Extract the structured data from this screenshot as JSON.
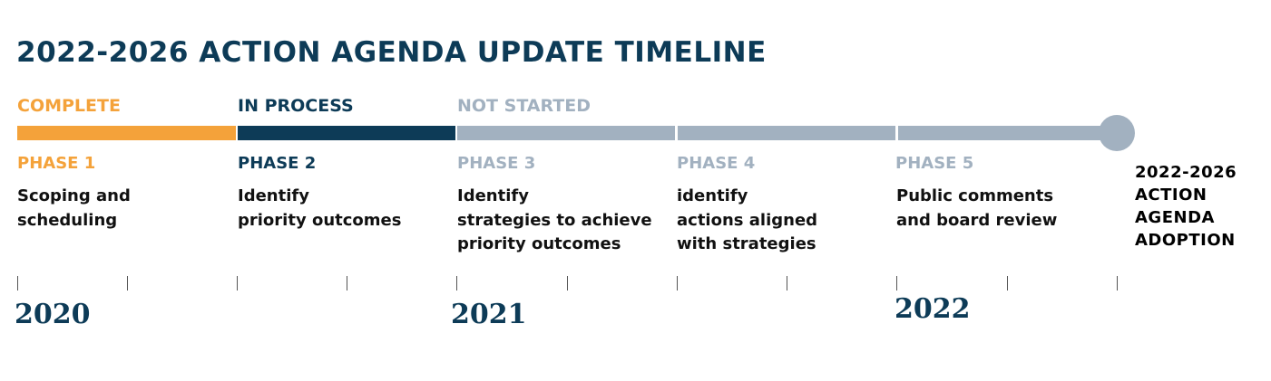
{
  "title": "2022-2026 ACTION AGENDA UPDATE TIMELINE",
  "colors": {
    "complete": "#f4a23a",
    "in_process": "#0d3b57",
    "not_started": "#a2b1c0",
    "text_dark": "#111111"
  },
  "statuses": [
    {
      "label": "COMPLETE",
      "color": "#f4a23a"
    },
    {
      "label": "IN PROCESS",
      "color": "#0d3b57"
    },
    {
      "label": "NOT STARTED",
      "color": "#a2b1c0"
    }
  ],
  "phases": [
    {
      "label": "PHASE 1",
      "status": "complete",
      "lines": [
        "Scoping and",
        "scheduling"
      ]
    },
    {
      "label": "PHASE 2",
      "status": "in_process",
      "lines": [
        "Identify",
        "priority outcomes"
      ]
    },
    {
      "label": "PHASE 3",
      "status": "not_started",
      "lines": [
        "Identify",
        "strategies to achieve",
        "priority outcomes"
      ]
    },
    {
      "label": "PHASE 4",
      "status": "not_started",
      "lines": [
        "identify",
        "actions aligned",
        "with strategies"
      ]
    },
    {
      "label": "PHASE 5",
      "status": "not_started",
      "lines": [
        "Public comments",
        "and board review"
      ]
    }
  ],
  "adoption": {
    "lines": [
      "2022-2026",
      "ACTION",
      "AGENDA",
      "ADOPTION"
    ]
  },
  "years": [
    "2020",
    "2021",
    "2022"
  ]
}
